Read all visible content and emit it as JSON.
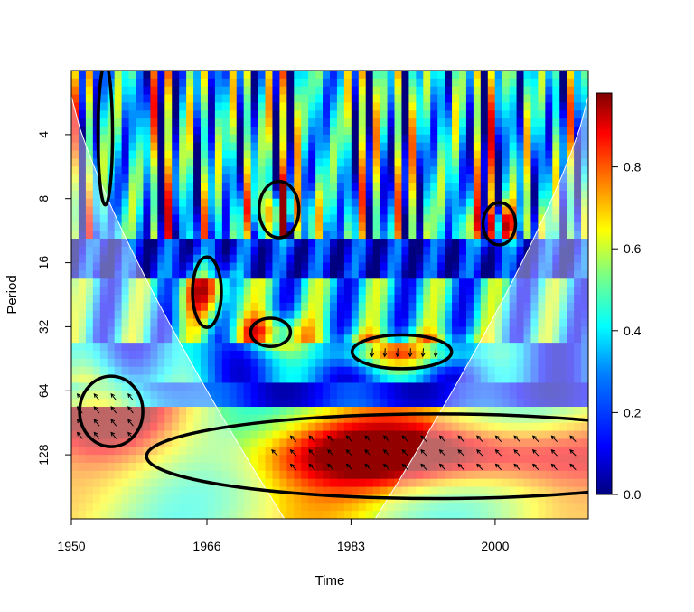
{
  "chart_data": {
    "type": "heatmap",
    "title": "",
    "xlabel": "Time",
    "ylabel": "Period",
    "x_ticks": [
      "1950",
      "1966",
      "1983",
      "2000"
    ],
    "y_ticks": [
      "4",
      "8",
      "16",
      "32",
      "64",
      "128"
    ],
    "colorbar_ticks": [
      "0.0",
      "0.2",
      "0.4",
      "0.6",
      "0.8"
    ],
    "colorbar_range": [
      0,
      0.98
    ],
    "x_range": [
      1950,
      2011
    ],
    "y_scale": "log2",
    "y_range_period": [
      2,
      256
    ],
    "colormap": [
      "#00007f",
      "#0000ff",
      "#007fff",
      "#00ffff",
      "#7fff7f",
      "#ffff00",
      "#ff7f00",
      "#ff0000",
      "#7f0000"
    ],
    "significant_regions": [
      {
        "center_time": 1954.7,
        "center_period": 80
      },
      {
        "center_time": 1993,
        "center_period": 130
      },
      {
        "center_time": 1989,
        "center_period": 42
      },
      {
        "center_time": 1973.5,
        "center_period": 34
      },
      {
        "center_time": 1966,
        "center_period": 22
      },
      {
        "center_time": 1974.5,
        "center_period": 9
      },
      {
        "center_time": 2000.5,
        "center_period": 10.5
      },
      {
        "center_time": 1954,
        "center_period": 4
      }
    ]
  }
}
